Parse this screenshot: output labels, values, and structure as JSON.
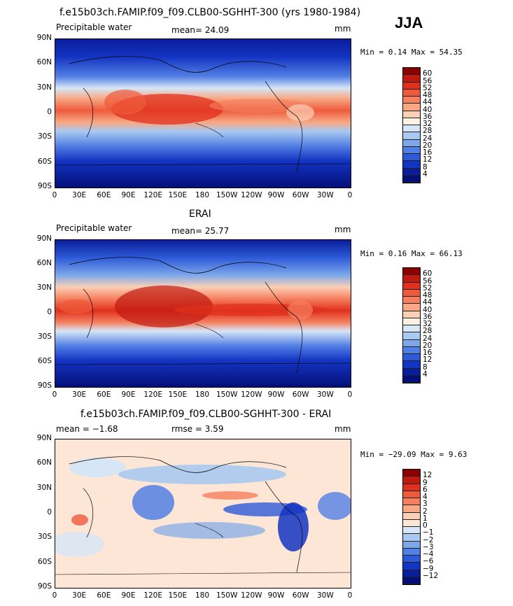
{
  "season": "JJA",
  "panels": [
    {
      "title": "f.e15b03ch.FAMIP.f09_f09.CLB00-SGHHT-300 (yrs 1980-1984)",
      "left_label": "Precipitable water",
      "center_label": "mean=  24.09",
      "units": "mm",
      "minmax": "Min =   0.14 Max =  54.35",
      "levels": [
        "60",
        "56",
        "52",
        "48",
        "44",
        "40",
        "36",
        "32",
        "28",
        "24",
        "20",
        "16",
        "12",
        "8",
        "4"
      ],
      "colors": [
        "#8b0000",
        "#c1190f",
        "#e0301e",
        "#ee5a3c",
        "#f57f5e",
        "#f8a884",
        "#fbd0b6",
        "#fdf1e4",
        "#d6e6f7",
        "#aac9f0",
        "#7ea8ea",
        "#527fe4",
        "#2d5ad8",
        "#1434c2",
        "#0a1d9a",
        "#041078"
      ]
    },
    {
      "title": "ERAI",
      "left_label": "Precipitable water",
      "center_label": "mean=  25.77",
      "units": "mm",
      "minmax": "Min =   0.16 Max =  66.13",
      "levels": [
        "60",
        "56",
        "52",
        "48",
        "44",
        "40",
        "36",
        "32",
        "28",
        "24",
        "20",
        "16",
        "12",
        "8",
        "4"
      ],
      "colors": [
        "#8b0000",
        "#c1190f",
        "#e0301e",
        "#ee5a3c",
        "#f57f5e",
        "#f8a884",
        "#fbd0b6",
        "#fdf1e4",
        "#d6e6f7",
        "#aac9f0",
        "#7ea8ea",
        "#527fe4",
        "#2d5ad8",
        "#1434c2",
        "#0a1d9a",
        "#041078"
      ]
    },
    {
      "title": "f.e15b03ch.FAMIP.f09_f09.CLB00-SGHHT-300 - ERAI",
      "left_label": "mean =  −1.68",
      "center_label": "rmse =   3.59",
      "units": "mm",
      "minmax": "Min = −29.09 Max =   9.63",
      "levels": [
        "12",
        "9",
        "6",
        "4",
        "3",
        "2",
        "1",
        "0",
        "−1",
        "−2",
        "−3",
        "−4",
        "−6",
        "−9",
        "−12"
      ],
      "colors": [
        "#8b0000",
        "#c1190f",
        "#e0301e",
        "#ee5a3c",
        "#f57f5e",
        "#f8a884",
        "#fbd0b6",
        "#fde6d6",
        "#d6e6f7",
        "#aac9f0",
        "#7ea8ea",
        "#527fe4",
        "#2d5ad8",
        "#1434c2",
        "#0a1d9a",
        "#041078"
      ]
    }
  ],
  "lat_ticks": [
    "90N",
    "60N",
    "30N",
    "0",
    "30S",
    "60S",
    "90S"
  ],
  "lon_ticks": [
    "0",
    "30E",
    "60E",
    "90E",
    "120E",
    "150E",
    "180",
    "150W",
    "120W",
    "90W",
    "60W",
    "30W",
    "0"
  ]
}
